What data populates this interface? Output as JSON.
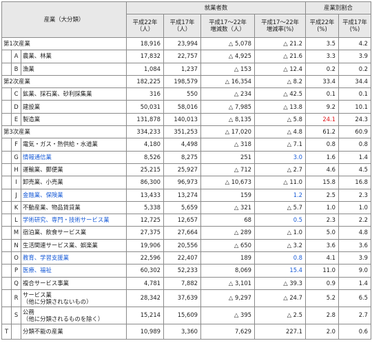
{
  "headers": {
    "industry": "産業（大分類）",
    "employed": "就業者数",
    "share": "産業別割合",
    "h22": "平成22年\n（人）",
    "h17": "平成17年\n（人）",
    "diff": "平成17～22年\n増減数（人）",
    "rate": "平成17～22年\n増減率(%)",
    "sh22": "平成22年\n(%)",
    "sh17": "平成17年\n(%)"
  },
  "rows": [
    {
      "kind": "group",
      "name": "第1次産業",
      "h22": "18,916",
      "h17": "23,994",
      "diff": "△ 5,078",
      "rate": "△ 21.2",
      "sh22": "3.5",
      "sh17": "4.2"
    },
    {
      "kind": "sub",
      "code": "A",
      "name": "農業、林業",
      "h22": "17,832",
      "h17": "22,757",
      "diff": "△ 4,925",
      "rate": "△ 21.6",
      "sh22": "3.3",
      "sh17": "3.9"
    },
    {
      "kind": "sub",
      "code": "B",
      "name": "漁業",
      "h22": "1,084",
      "h17": "1,237",
      "diff": "△ 153",
      "rate": "△ 12.4",
      "sh22": "0.2",
      "sh17": "0.2"
    },
    {
      "kind": "group",
      "name": "第2次産業",
      "h22": "182,225",
      "h17": "198,579",
      "diff": "△ 16,354",
      "rate": "△ 8.2",
      "sh22": "33.4",
      "sh17": "34.4"
    },
    {
      "kind": "sub",
      "code": "C",
      "name": "鉱業、採石業、砂利採集業",
      "h22": "316",
      "h17": "550",
      "diff": "△ 234",
      "rate": "△ 42.5",
      "sh22": "0.1",
      "sh17": "0.1"
    },
    {
      "kind": "sub",
      "code": "D",
      "name": "建設業",
      "h22": "50,031",
      "h17": "58,016",
      "diff": "△ 7,985",
      "rate": "△ 13.8",
      "sh22": "9.2",
      "sh17": "10.1"
    },
    {
      "kind": "sub",
      "code": "E",
      "name": "製造業",
      "h22": "131,878",
      "h17": "140,013",
      "diff": "△ 8,135",
      "rate": "△ 5.8",
      "sh22": "24.1",
      "sh17": "24.3",
      "sh22_red": true
    },
    {
      "kind": "group",
      "name": "第3次産業",
      "h22": "334,233",
      "h17": "351,253",
      "diff": "△ 17,020",
      "rate": "△ 4.8",
      "sh22": "61.2",
      "sh17": "60.9"
    },
    {
      "kind": "sub",
      "code": "F",
      "name": "電気・ガス・熱供給・水道業",
      "h22": "4,180",
      "h17": "4,498",
      "diff": "△ 318",
      "rate": "△ 7.1",
      "sh22": "0.8",
      "sh17": "0.8"
    },
    {
      "kind": "sub",
      "code": "G",
      "name": "情報通信業",
      "h22": "8,526",
      "h17": "8,275",
      "diff": "251",
      "rate": "3.0",
      "sh22": "1.6",
      "sh17": "1.4",
      "blue": true
    },
    {
      "kind": "sub",
      "code": "H",
      "name": "運輸業、郵便業",
      "h22": "25,215",
      "h17": "25,927",
      "diff": "△ 712",
      "rate": "△ 2.7",
      "sh22": "4.6",
      "sh17": "4.5"
    },
    {
      "kind": "sub",
      "code": "I",
      "name": "卸売業、小売業",
      "h22": "86,300",
      "h17": "96,973",
      "diff": "△ 10,673",
      "rate": "△ 11.0",
      "sh22": "15.8",
      "sh17": "16.8"
    },
    {
      "kind": "sub",
      "code": "J",
      "name": "金融業、保険業",
      "h22": "13,433",
      "h17": "13,274",
      "diff": "159",
      "rate": "1.2",
      "sh22": "2.5",
      "sh17": "2.3",
      "blue": true
    },
    {
      "kind": "sub",
      "code": "K",
      "name": "不動産業、物品賃貸業",
      "h22": "5,338",
      "h17": "5,659",
      "diff": "△ 321",
      "rate": "△ 5.7",
      "sh22": "1.0",
      "sh17": "1.0"
    },
    {
      "kind": "sub",
      "code": "L",
      "name": "学術研究、専門・技術サービス業",
      "h22": "12,725",
      "h17": "12,657",
      "diff": "68",
      "rate": "0.5",
      "sh22": "2.3",
      "sh17": "2.2",
      "blue": true
    },
    {
      "kind": "sub",
      "code": "M",
      "name": "宿泊業、飲食サービス業",
      "h22": "27,375",
      "h17": "27,664",
      "diff": "△ 289",
      "rate": "△ 1.0",
      "sh22": "5.0",
      "sh17": "4.8"
    },
    {
      "kind": "sub",
      "code": "N",
      "name": "生活関連サービス業、娯楽業",
      "h22": "19,906",
      "h17": "20,556",
      "diff": "△ 650",
      "rate": "△ 3.2",
      "sh22": "3.6",
      "sh17": "3.6"
    },
    {
      "kind": "sub",
      "code": "O",
      "name": "教育、学習支援業",
      "h22": "22,596",
      "h17": "22,407",
      "diff": "189",
      "rate": "0.8",
      "sh22": "4.1",
      "sh17": "3.9",
      "blue": true
    },
    {
      "kind": "sub",
      "code": "P",
      "name": "医療、福祉",
      "h22": "60,302",
      "h17": "52,233",
      "diff": "8,069",
      "rate": "15.4",
      "sh22": "11.0",
      "sh17": "9.0",
      "blue": true
    },
    {
      "kind": "sub",
      "code": "Q",
      "name": "複合サービス事業",
      "h22": "4,781",
      "h17": "7,882",
      "diff": "△ 3,101",
      "rate": "△ 39.3",
      "sh22": "0.9",
      "sh17": "1.4"
    },
    {
      "kind": "sub2",
      "code": "R",
      "name": "サービス業\n（他に分類されないもの）",
      "h22": "28,342",
      "h17": "37,639",
      "diff": "△ 9,297",
      "rate": "△ 24.7",
      "sh22": "5.2",
      "sh17": "6.5"
    },
    {
      "kind": "sub2",
      "code": "S",
      "name": "公務\n（他に分類されるものを除く）",
      "h22": "15,214",
      "h17": "15,609",
      "diff": "△ 395",
      "rate": "△ 2.5",
      "sh22": "2.8",
      "sh17": "2.7"
    },
    {
      "kind": "total",
      "code": "T",
      "name": "分類不能の産業",
      "h22": "10,989",
      "h17": "3,360",
      "diff": "7,629",
      "rate": "227.1",
      "sh22": "2.0",
      "sh17": "0.6"
    }
  ]
}
